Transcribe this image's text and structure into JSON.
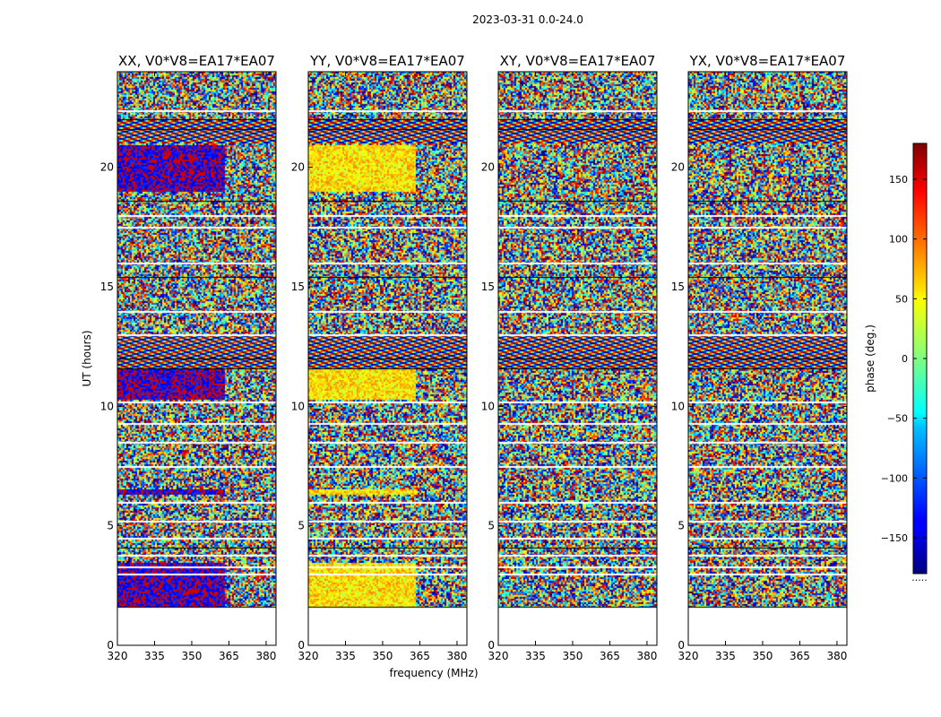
{
  "chart_data": {
    "type": "heatmap",
    "suptitle": "2023-03-31 0.0-24.0",
    "xlabel": "frequency (MHz)",
    "ylabel": "UT (hours)",
    "xlim": [
      320,
      384
    ],
    "ylim": [
      0,
      24
    ],
    "xticks": [
      "320",
      "335",
      "350",
      "365",
      "380"
    ],
    "yticks": [
      "0",
      "5",
      "10",
      "15",
      "20"
    ],
    "xtick_values": [
      320,
      335,
      350,
      365,
      380
    ],
    "ytick_values": [
      0,
      5,
      10,
      15,
      20
    ],
    "data_ut_range": [
      1.6,
      24.0
    ],
    "colorbar": {
      "label": "phase (deg.)",
      "range": [
        -180,
        180
      ],
      "ticks": [
        "150",
        "100",
        "50",
        "0",
        "−50",
        "−100",
        "−150"
      ],
      "tick_values": [
        150,
        100,
        50,
        0,
        -50,
        -100,
        -150
      ],
      "colormap": "jet",
      "footer": "....."
    },
    "panels": [
      {
        "title": "XX, V0*V8=EA17*EA07",
        "polarization": "XX",
        "baseline": "V0*V8=EA17*EA07"
      },
      {
        "title": "YY, V0*V8=EA17*EA07",
        "polarization": "YY",
        "baseline": "V0*V8=EA17*EA07"
      },
      {
        "title": "XY, V0*V8=EA17*EA07",
        "polarization": "XY",
        "baseline": "V0*V8=EA17*EA07"
      },
      {
        "title": "YX, V0*V8=EA17*EA07",
        "polarization": "YX",
        "baseline": "V0*V8=EA17*EA07"
      }
    ]
  }
}
